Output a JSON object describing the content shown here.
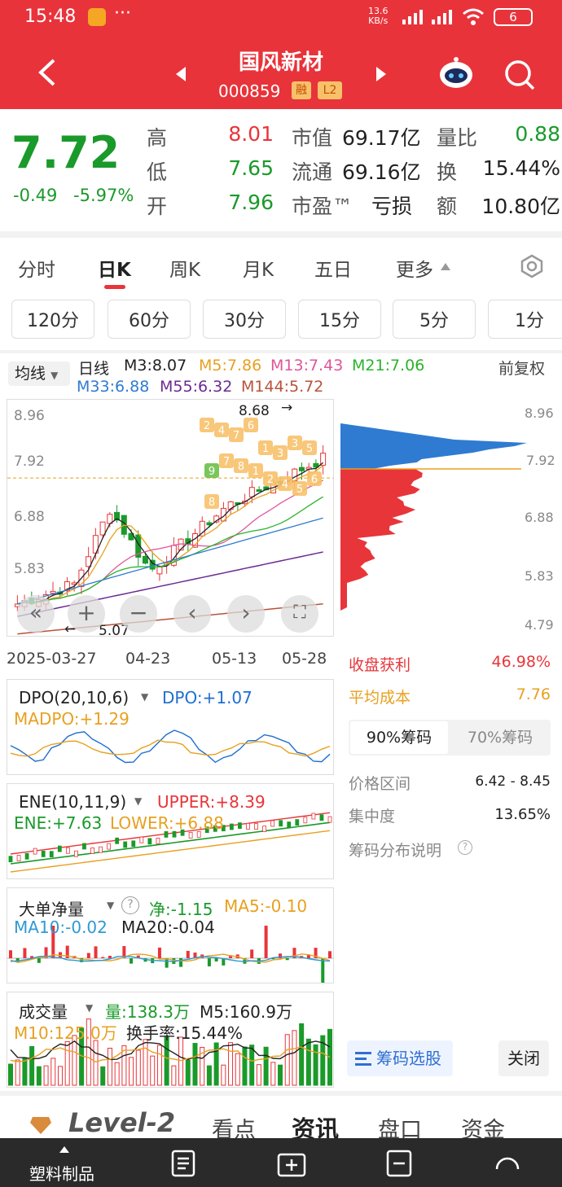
{
  "status": {
    "time": "15:48",
    "net_speed_top": "13.6",
    "net_speed_bottom": "KB/s",
    "battery": "6"
  },
  "header": {
    "title": "国风新材",
    "code": "000859",
    "badge_rong": "融",
    "badge_l2": "L2"
  },
  "quote": {
    "price": "7.72",
    "change": "-0.49",
    "change_pct": "-5.97%",
    "high_label": "高",
    "high": "8.01",
    "low_label": "低",
    "low": "7.65",
    "open_label": "开",
    "open": "7.96",
    "mv_label": "市值",
    "mv": "69.17亿",
    "float_label": "流通",
    "float": "69.16亿",
    "pe_label": "市盈™",
    "pe": "亏损",
    "vr_label": "量比",
    "vr": "0.88",
    "turn_label": "换",
    "turn": "15.44%",
    "amt_label": "额",
    "amt": "10.80亿"
  },
  "tabs": [
    "分时",
    "日K",
    "周K",
    "月K",
    "五日",
    "更多"
  ],
  "periods": [
    "120分",
    "60分",
    "30分",
    "15分",
    "5分",
    "1分"
  ],
  "ma": {
    "selector": "均线",
    "period": "日线",
    "m3": "M3:8.07",
    "m5": "M5:7.86",
    "m13": "M13:7.43",
    "m21": "M21:7.06",
    "m33": "M33:6.88",
    "m55": "M55:6.32",
    "m144": "M144:5.72",
    "adjust": "前复权"
  },
  "kline": {
    "yticks": [
      "8.96",
      "7.92",
      "6.88",
      "5.83",
      "4.79"
    ],
    "high_note": "8.68",
    "low_note": "5.07",
    "dates": [
      "2025-03-27",
      "04-23",
      "05-13",
      "05-28"
    ],
    "chips": [
      "2",
      "4",
      "7",
      "6",
      "1",
      "3",
      "3",
      "5",
      "9",
      "7",
      "8",
      "1",
      "2",
      "4",
      "5",
      "6",
      "8"
    ]
  },
  "colors": {
    "red": "#e8353a",
    "green": "#1a9a2a",
    "blue": "#1f6fd1",
    "orange": "#e8a020",
    "purple": "#6b2a90"
  },
  "dpo": {
    "name": "DPO(20,10,6)",
    "dpo": "DPO:+1.07",
    "madpo": "MADPO:+1.29"
  },
  "ene": {
    "name": "ENE(10,11,9)",
    "upper": "UPPER:+8.39",
    "ene": "ENE:+7.63",
    "lower": "LOWER:+6.88"
  },
  "bign": {
    "name": "大单净量",
    "net": "净:-1.15",
    "ma5": "MA5:-0.10",
    "ma10": "MA10:-0.02",
    "ma20": "MA20:-0.04"
  },
  "vol": {
    "name": "成交量",
    "vol": "量:138.3万",
    "m5": "M5:160.9万",
    "m10": "M10:125.0万",
    "turn": "换手率:15.44%"
  },
  "chip": {
    "profit_label": "收盘获利",
    "profit": "46.98%",
    "cost_label": "平均成本",
    "cost": "7.76",
    "tab90": "90%筹码",
    "tab70": "70%筹码",
    "range_label": "价格区间",
    "range": "6.42 - 8.45",
    "conc_label": "集中度",
    "conc": "13.65%",
    "explain": "筹码分布说明",
    "select_btn": "筹码选股",
    "close_btn": "关闭"
  },
  "bottom_tabs": [
    "Level-2",
    "看点",
    "资讯",
    "盘口",
    "资金"
  ],
  "nav": {
    "industry": "塑料制品"
  }
}
